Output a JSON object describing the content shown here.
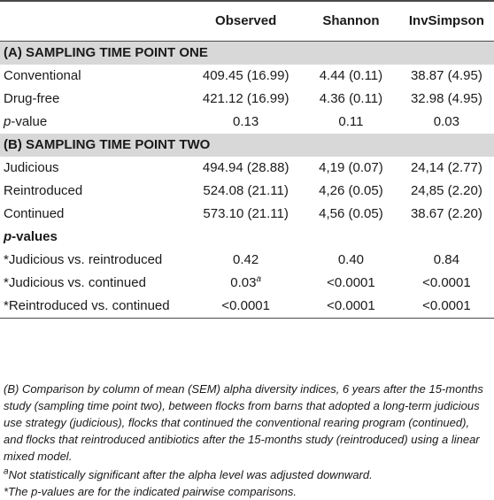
{
  "header": {
    "col0": "",
    "col1": "Observed",
    "col2": "Shannon",
    "col3": "InvSimpson"
  },
  "section_a": {
    "title": "(A) SAMPLING TIME POINT ONE",
    "rows": [
      {
        "label": "Conventional",
        "observed": "409.45 (16.99)",
        "shannon": "4.44 (0.11)",
        "invsimpson": "38.87 (4.95)"
      },
      {
        "label": "Drug-free",
        "observed": "421.12 (16.99)",
        "shannon": "4.36 (0.11)",
        "invsimpson": "32.98 (4.95)"
      }
    ],
    "pvalue": {
      "label_prefix": "p",
      "label_suffix": "-value",
      "observed": "0.13",
      "shannon": "0.11",
      "invsimpson": "0.03"
    }
  },
  "section_b": {
    "title": "(B) SAMPLING TIME POINT TWO",
    "rows": [
      {
        "label": "Judicious",
        "observed": "494.94 (28.88)",
        "shannon": "4,19 (0.07)",
        "invsimpson": "24,14 (2.77)"
      },
      {
        "label": "Reintroduced",
        "observed": "524.08 (21.11)",
        "shannon": "4,26 (0.05)",
        "invsimpson": "24,85 (2.20)"
      },
      {
        "label": "Continued",
        "observed": "573.10 (21.11)",
        "shannon": "4,56 (0.05)",
        "invsimpson": "38.67 (2.20)"
      }
    ],
    "pvalues_head": {
      "prefix": "p",
      "suffix": "-values"
    },
    "comparisons": [
      {
        "label": "*Judicious vs. reintroduced",
        "observed": "0.42",
        "observed_sup": "",
        "shannon": "0.40",
        "invsimpson": "0.84"
      },
      {
        "label": "*Judicious vs. continued",
        "observed": "0.03",
        "observed_sup": "a",
        "shannon": "<0.0001",
        "invsimpson": "<0.0001"
      },
      {
        "label": "*Reintroduced vs. continued",
        "observed": "<0.0001",
        "observed_sup": "",
        "shannon": "<0.0001",
        "invsimpson": "<0.0001"
      }
    ]
  },
  "footnotes": {
    "caption": "(B) Comparison by column of mean (SEM) alpha diversity indices, 6 years after the 15-months study (sampling time point two), between flocks from barns that adopted a long-term judicious use strategy (judicious), flocks that continued the conventional rearing program (continued), and flocks that reintroduced antibiotics after the 15-months study (reintroduced) using a linear mixed model.",
    "note_a_marker": "a",
    "note_a": "Not statistically significant after the alpha level was adjusted downward.",
    "note_star": "*The p-values are for the indicated pairwise comparisons."
  },
  "colors": {
    "section_bg": "#d8d8d8",
    "rule": "#4a4a4a"
  }
}
